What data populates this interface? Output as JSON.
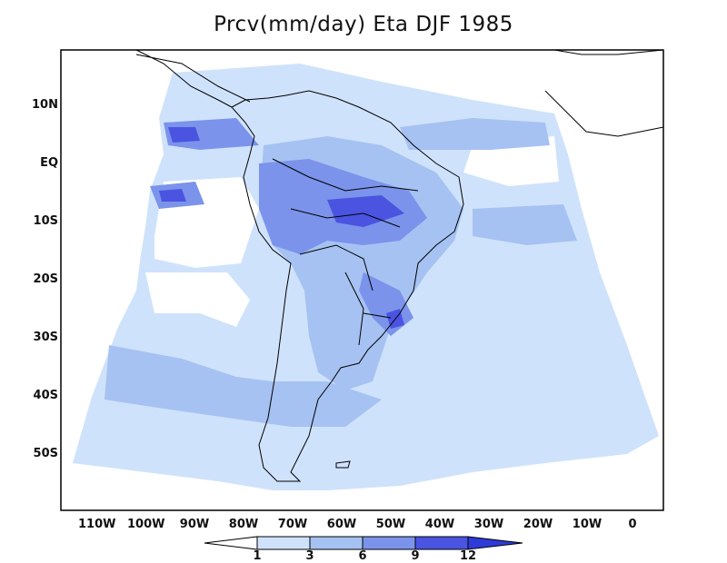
{
  "title": "Prcv(mm/day) Eta DJF 1985",
  "lat_ticks": [
    "10N",
    "EQ",
    "10S",
    "20S",
    "30S",
    "40S",
    "50S"
  ],
  "lon_ticks": [
    "110W",
    "100W",
    "90W",
    "80W",
    "70W",
    "60W",
    "50W",
    "40W",
    "30W",
    "20W",
    "10W",
    "0"
  ],
  "colorbar": {
    "labels": [
      "1",
      "3",
      "6",
      "9",
      "12"
    ],
    "colors": [
      "#ffffff",
      "#cfe2fb",
      "#a6c2f2",
      "#7b93ea",
      "#4a54e1",
      "#2f3bd8"
    ]
  },
  "colors": {
    "land_outline": "#000000",
    "light": "#cfe2fb",
    "medium": "#a6c2f2",
    "dark": "#7b93ea",
    "darker": "#4a54e1"
  }
}
